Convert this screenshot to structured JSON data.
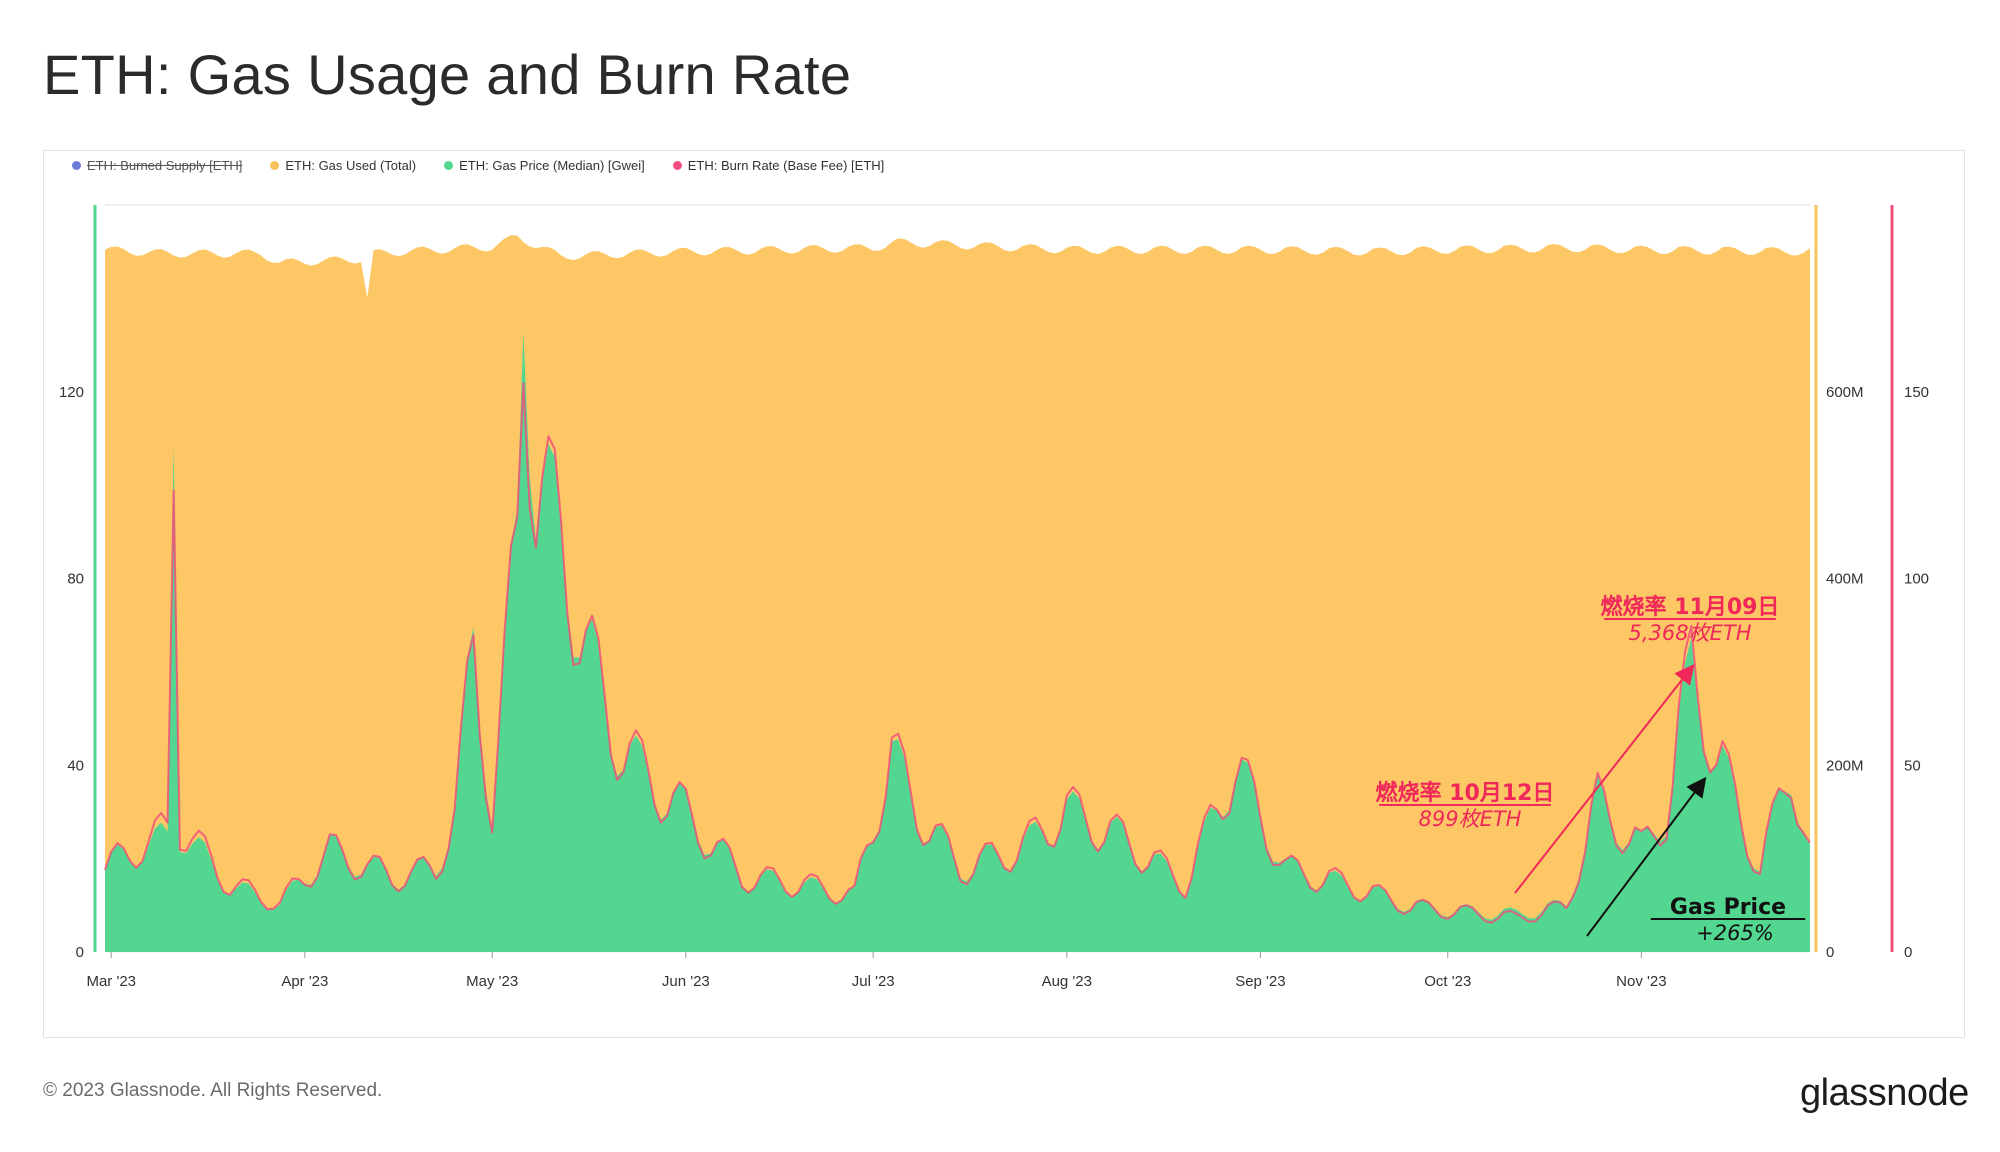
{
  "title": "ETH: Gas Usage and Burn Rate",
  "legend": [
    {
      "label": "ETH: Burned Supply [ETH]",
      "color": "#6c7bd9",
      "disabled": true
    },
    {
      "label": "ETH: Gas Used (Total)",
      "color": "#f7c25c",
      "disabled": false
    },
    {
      "label": "ETH: Gas Price (Median) [Gwei]",
      "color": "#53d68f",
      "disabled": false
    },
    {
      "label": "ETH: Burn Rate (Base Fee) [ETH]",
      "color": "#f0507b",
      "disabled": false
    }
  ],
  "footer": {
    "copyright": "© 2023 Glassnode. All Rights Reserved.",
    "brand": "glassnode"
  },
  "chart_data": {
    "type": "area",
    "title": "ETH: Gas Usage and Burn Rate",
    "x_range": [
      "2023-02-28",
      "2023-11-28"
    ],
    "x_tick_labels": [
      "Mar '23",
      "Apr '23",
      "May '23",
      "Jun '23",
      "Jul '23",
      "Aug '23",
      "Sep '23",
      "Oct '23",
      "Nov '23"
    ],
    "left_axis": {
      "ticks": [
        "0",
        "40",
        "80",
        "120"
      ],
      "ylim": [
        0,
        160
      ],
      "color": "#53d68f"
    },
    "right_axis_1": {
      "ticks": [
        "0",
        "200M",
        "400M",
        "600M"
      ],
      "ylim": [
        0,
        800000000
      ],
      "color": "#f7c25c"
    },
    "right_axis_2": {
      "ticks": [
        "0",
        "50",
        "100",
        "150"
      ],
      "ylim": [
        0,
        200
      ],
      "color": "#f0507b"
    },
    "series": [
      {
        "name": "ETH: Gas Used (Total)",
        "axis": "right_axis_1",
        "color": "#fdc766",
        "points": [
          [
            "2023-02-28",
            752000000
          ],
          [
            "2023-03-10",
            748000000
          ],
          [
            "2023-03-25",
            748000000
          ],
          [
            "2023-03-28",
            738000000
          ],
          [
            "2023-04-10",
            742000000
          ],
          [
            "2023-04-11",
            700000000
          ],
          [
            "2023-04-12",
            748000000
          ],
          [
            "2023-04-22",
            752000000
          ],
          [
            "2023-05-01",
            755000000
          ],
          [
            "2023-05-05",
            766000000
          ],
          [
            "2023-05-12",
            745000000
          ],
          [
            "2023-06-01",
            750000000
          ],
          [
            "2023-07-01",
            754000000
          ],
          [
            "2023-07-05",
            760000000
          ],
          [
            "2023-08-01",
            752000000
          ],
          [
            "2023-09-01",
            752000000
          ],
          [
            "2023-09-20",
            750000000
          ],
          [
            "2023-10-01",
            752000000
          ],
          [
            "2023-10-20",
            754000000
          ],
          [
            "2023-11-01",
            752000000
          ],
          [
            "2023-11-28",
            750000000
          ]
        ]
      },
      {
        "name": "ETH: Gas Price (Median) [Gwei]",
        "axis": "left_axis",
        "color": "#53d68f",
        "points": [
          [
            "2023-02-28",
            18
          ],
          [
            "2023-03-05",
            22
          ],
          [
            "2023-03-10",
            24
          ],
          [
            "2023-03-11",
            118
          ],
          [
            "2023-03-12",
            26
          ],
          [
            "2023-03-20",
            14
          ],
          [
            "2023-03-28",
            10
          ],
          [
            "2023-04-05",
            22
          ],
          [
            "2023-04-15",
            16
          ],
          [
            "2023-04-22",
            18
          ],
          [
            "2023-04-25",
            30
          ],
          [
            "2023-04-28",
            66
          ],
          [
            "2023-05-01",
            30
          ],
          [
            "2023-05-05",
            90
          ],
          [
            "2023-05-06",
            148
          ],
          [
            "2023-05-08",
            100
          ],
          [
            "2023-05-12",
            88
          ],
          [
            "2023-05-16",
            66
          ],
          [
            "2023-05-20",
            48
          ],
          [
            "2023-05-25",
            38
          ],
          [
            "2023-06-01",
            30
          ],
          [
            "2023-06-10",
            16
          ],
          [
            "2023-06-20",
            14
          ],
          [
            "2023-06-28",
            12
          ],
          [
            "2023-07-04",
            42
          ],
          [
            "2023-07-08",
            30
          ],
          [
            "2023-07-15",
            18
          ],
          [
            "2023-07-25",
            22
          ],
          [
            "2023-08-01",
            30
          ],
          [
            "2023-08-10",
            24
          ],
          [
            "2023-08-20",
            14
          ],
          [
            "2023-08-28",
            40
          ],
          [
            "2023-09-05",
            18
          ],
          [
            "2023-09-15",
            14
          ],
          [
            "2023-09-25",
            10
          ],
          [
            "2023-10-01",
            9
          ],
          [
            "2023-10-12",
            8
          ],
          [
            "2023-10-20",
            10
          ],
          [
            "2023-10-25",
            32
          ],
          [
            "2023-11-01",
            22
          ],
          [
            "2023-11-05",
            30
          ],
          [
            "2023-11-09",
            60
          ],
          [
            "2023-11-13",
            42
          ],
          [
            "2023-11-20",
            18
          ],
          [
            "2023-11-25",
            40
          ],
          [
            "2023-11-28",
            20
          ]
        ]
      },
      {
        "name": "ETH: Burn Rate (Base Fee) [ETH]",
        "axis": "right_axis_2",
        "color": "#f0507b",
        "points": [
          [
            "2023-02-28",
            22
          ],
          [
            "2023-03-05",
            28
          ],
          [
            "2023-03-10",
            32
          ],
          [
            "2023-03-11",
            136
          ],
          [
            "2023-03-12",
            34
          ],
          [
            "2023-03-20",
            18
          ],
          [
            "2023-03-28",
            13
          ],
          [
            "2023-04-05",
            27
          ],
          [
            "2023-04-15",
            20
          ],
          [
            "2023-04-22",
            22
          ],
          [
            "2023-04-25",
            37
          ],
          [
            "2023-04-28",
            80
          ],
          [
            "2023-05-01",
            37
          ],
          [
            "2023-05-05",
            110
          ],
          [
            "2023-05-06",
            172
          ],
          [
            "2023-05-08",
            125
          ],
          [
            "2023-05-12",
            110
          ],
          [
            "2023-05-16",
            82
          ],
          [
            "2023-05-20",
            60
          ],
          [
            "2023-05-25",
            48
          ],
          [
            "2023-06-01",
            37
          ],
          [
            "2023-06-10",
            20
          ],
          [
            "2023-06-20",
            18
          ],
          [
            "2023-06-28",
            15
          ],
          [
            "2023-07-04",
            53
          ],
          [
            "2023-07-08",
            38
          ],
          [
            "2023-07-15",
            22
          ],
          [
            "2023-07-25",
            28
          ],
          [
            "2023-08-01",
            38
          ],
          [
            "2023-08-10",
            30
          ],
          [
            "2023-08-20",
            18
          ],
          [
            "2023-08-28",
            50
          ],
          [
            "2023-09-05",
            22
          ],
          [
            "2023-09-15",
            18
          ],
          [
            "2023-09-25",
            12
          ],
          [
            "2023-10-01",
            11
          ],
          [
            "2023-10-12",
            9
          ],
          [
            "2023-10-20",
            12
          ],
          [
            "2023-10-25",
            40
          ],
          [
            "2023-11-01",
            27
          ],
          [
            "2023-11-05",
            37
          ],
          [
            "2023-11-09",
            77
          ],
          [
            "2023-11-13",
            53
          ],
          [
            "2023-11-20",
            22
          ],
          [
            "2023-11-25",
            50
          ],
          [
            "2023-11-28",
            25
          ]
        ]
      }
    ],
    "annotations": [
      {
        "text": "燃烧率 10月12日",
        "subtext": "899枚ETH",
        "color": "#f0285a",
        "date": "2023-10-12"
      },
      {
        "text": "燃烧率 11月09日",
        "subtext": "5,368枚ETH",
        "color": "#f0285a",
        "date": "2023-11-09"
      },
      {
        "text": "Gas Price",
        "subtext": "+265%",
        "color": "#111111",
        "date": "2023-11-09"
      }
    ],
    "grid": "horizontal"
  }
}
